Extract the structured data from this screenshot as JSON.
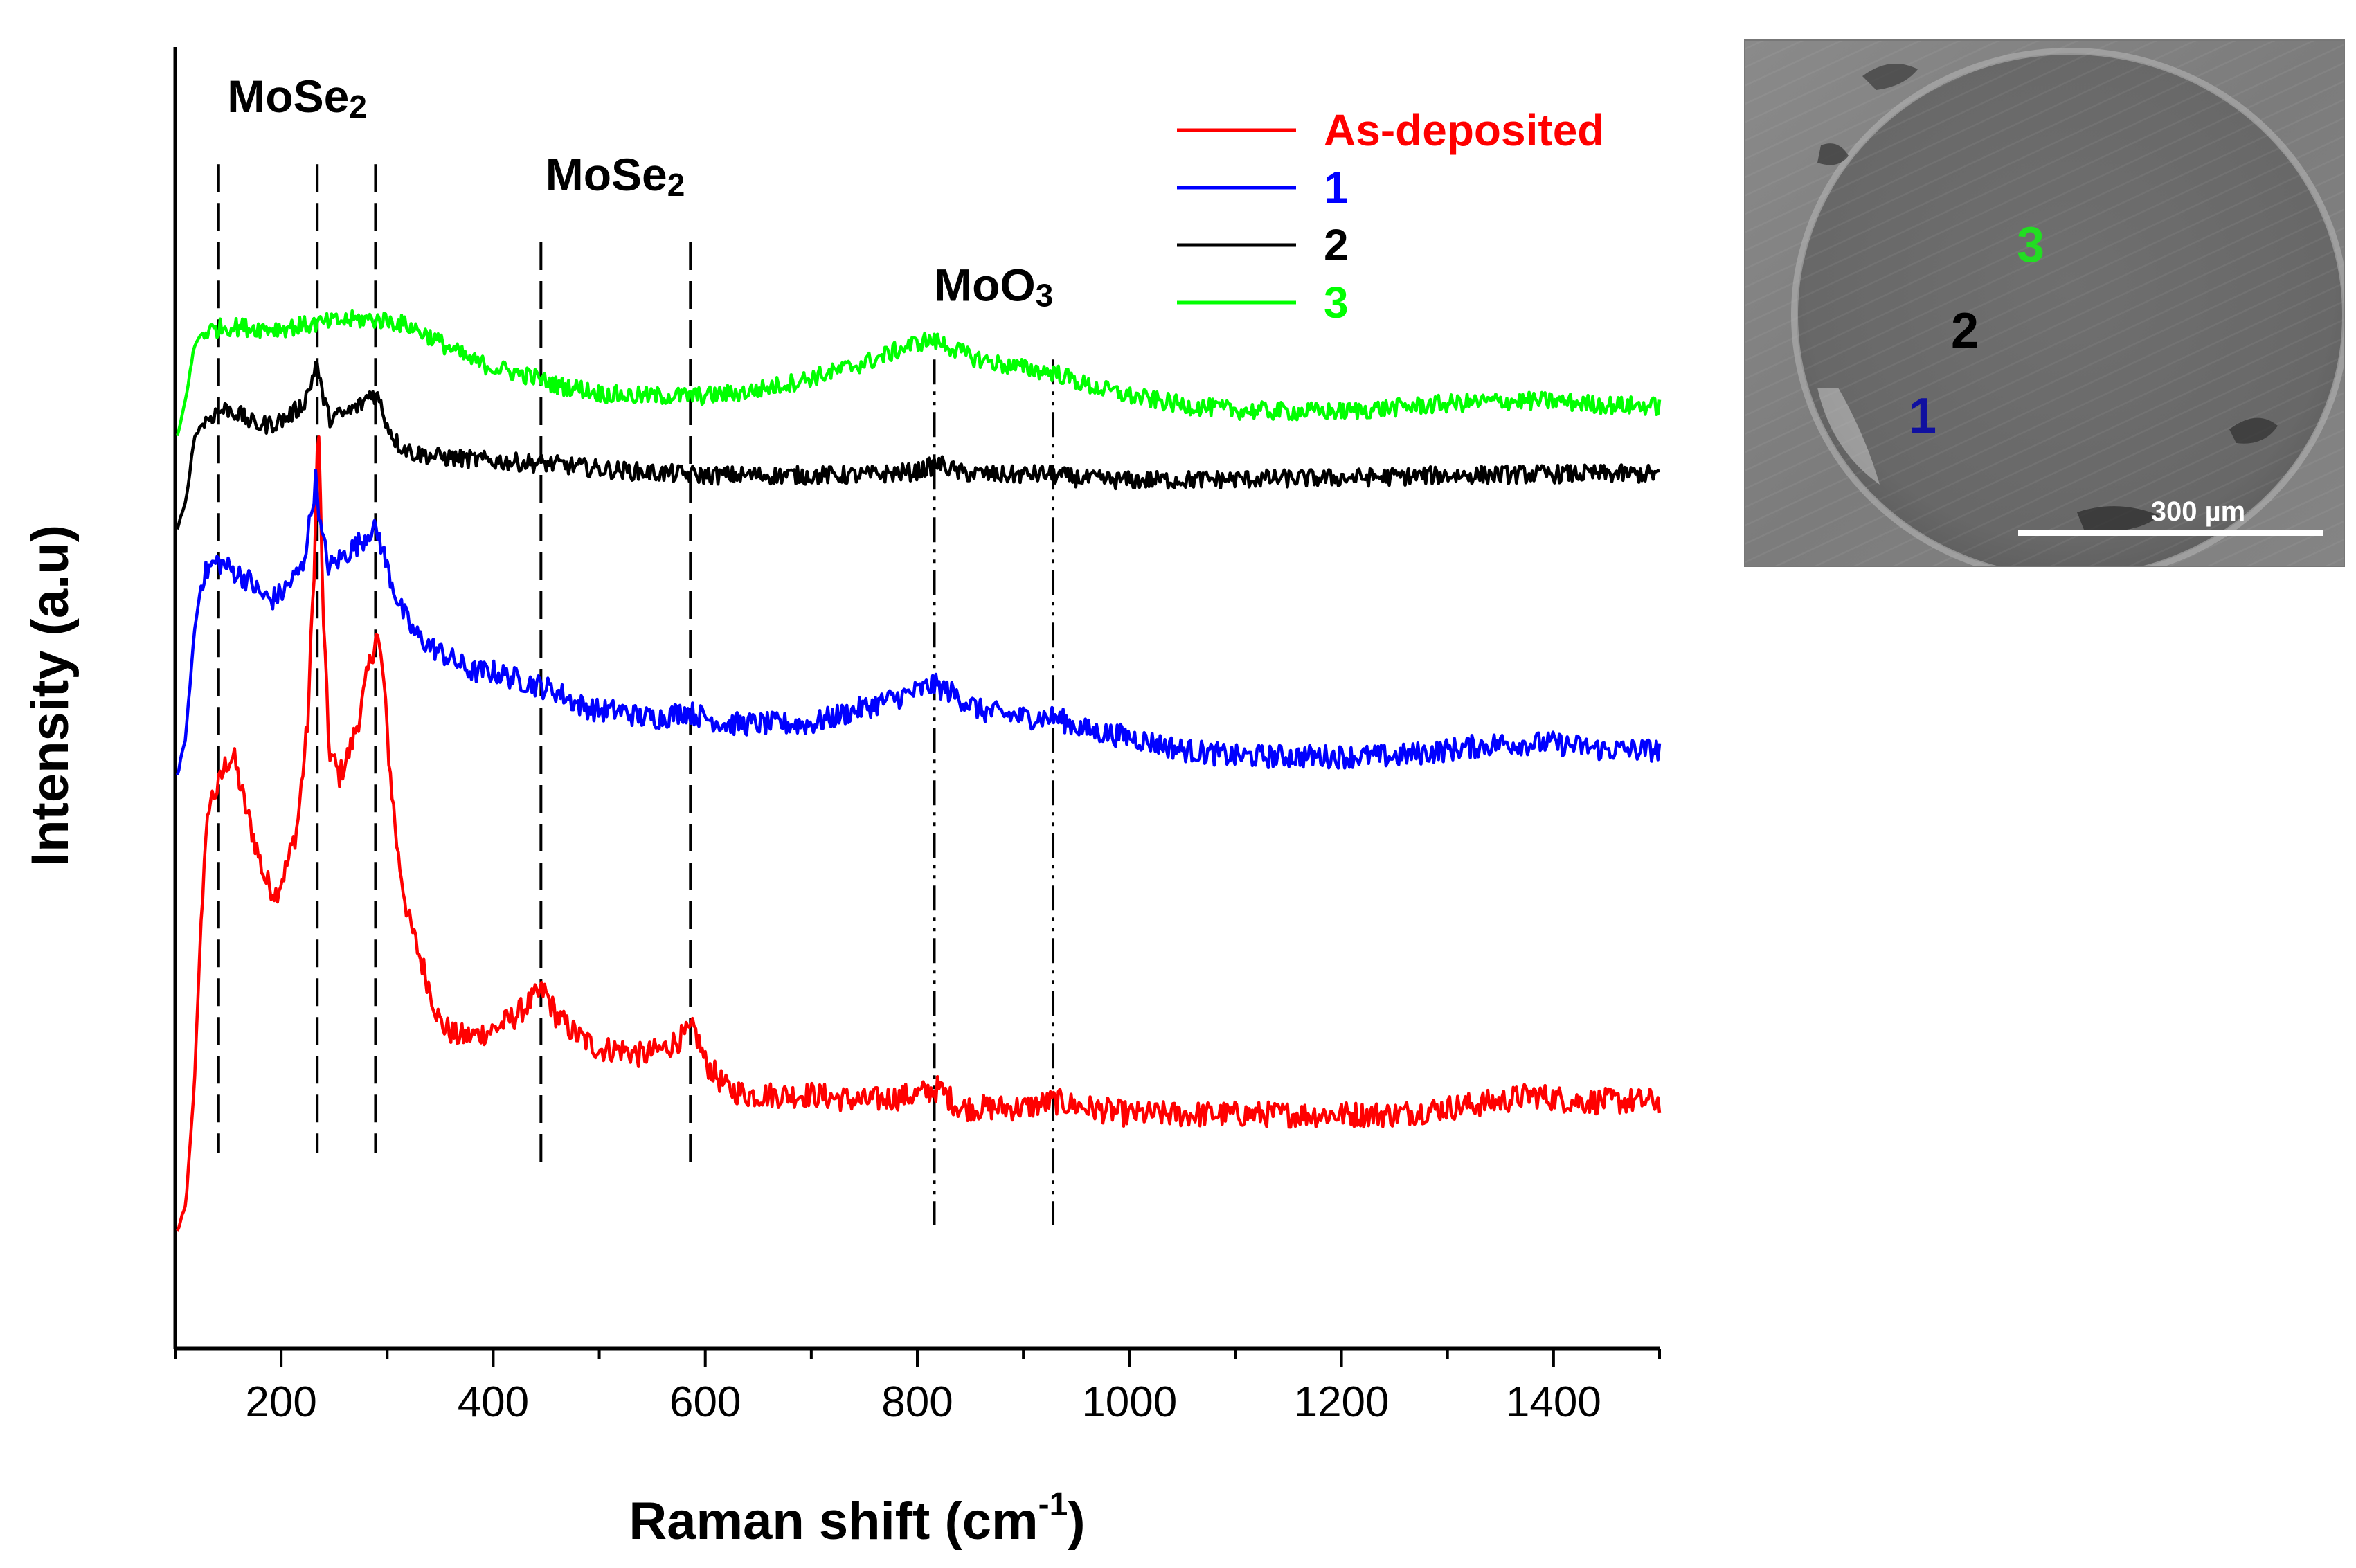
{
  "chart_data": {
    "type": "line",
    "title": "",
    "xlabel_main": "Raman shift (cm",
    "xlabel_sup": "-1",
    "xlabel_close": ")",
    "ylabel": "Intensity (a.u)",
    "xlim": [
      100,
      1500
    ],
    "xticks": [
      200,
      400,
      600,
      800,
      1000,
      1200,
      1400
    ],
    "xtick_labels": [
      "200",
      "400",
      "600",
      "800",
      "1000",
      "1200",
      "1400"
    ],
    "ylim": [
      0,
      100
    ],
    "grid": false,
    "legend_position": "top-right",
    "series": [
      {
        "name": "As-deposited",
        "color": "#ff0000",
        "noise": 1.0,
        "points": [
          [
            102,
            9
          ],
          [
            110,
            11
          ],
          [
            118,
            20
          ],
          [
            125,
            34
          ],
          [
            132,
            42
          ],
          [
            140,
            43
          ],
          [
            148,
            45
          ],
          [
            155,
            45.5
          ],
          [
            165,
            42
          ],
          [
            175,
            39
          ],
          [
            185,
            36
          ],
          [
            195,
            35
          ],
          [
            205,
            37
          ],
          [
            215,
            40
          ],
          [
            225,
            48
          ],
          [
            232,
            62
          ],
          [
            235,
            72
          ],
          [
            239,
            58
          ],
          [
            245,
            46
          ],
          [
            255,
            44
          ],
          [
            265,
            46
          ],
          [
            275,
            49
          ],
          [
            282,
            52
          ],
          [
            290,
            55
          ],
          [
            296,
            52
          ],
          [
            302,
            45
          ],
          [
            310,
            38
          ],
          [
            320,
            33
          ],
          [
            335,
            29
          ],
          [
            350,
            25
          ],
          [
            365,
            24
          ],
          [
            380,
            24
          ],
          [
            400,
            24.5
          ],
          [
            420,
            25.5
          ],
          [
            440,
            27
          ],
          [
            448,
            27.5
          ],
          [
            460,
            25.5
          ],
          [
            480,
            24
          ],
          [
            500,
            23
          ],
          [
            520,
            23
          ],
          [
            540,
            22.5
          ],
          [
            560,
            23
          ],
          [
            580,
            24
          ],
          [
            590,
            24.5
          ],
          [
            600,
            22
          ],
          [
            620,
            20
          ],
          [
            640,
            19.5
          ],
          [
            660,
            19.5
          ],
          [
            700,
            19.5
          ],
          [
            750,
            19
          ],
          [
            800,
            19.5
          ],
          [
            820,
            20
          ],
          [
            840,
            18.5
          ],
          [
            870,
            18.5
          ],
          [
            900,
            18.5
          ],
          [
            930,
            19
          ],
          [
            960,
            18.5
          ],
          [
            1000,
            18
          ],
          [
            1050,
            18
          ],
          [
            1100,
            18
          ],
          [
            1150,
            18
          ],
          [
            1200,
            18
          ],
          [
            1250,
            18
          ],
          [
            1300,
            18.5
          ],
          [
            1350,
            19
          ],
          [
            1380,
            19.5
          ],
          [
            1420,
            19
          ],
          [
            1460,
            19
          ],
          [
            1500,
            19
          ]
        ]
      },
      {
        "name": "1",
        "color": "#0000ff",
        "noise": 0.9,
        "points": [
          [
            102,
            44
          ],
          [
            110,
            47
          ],
          [
            118,
            55
          ],
          [
            125,
            59
          ],
          [
            132,
            60
          ],
          [
            140,
            60.5
          ],
          [
            150,
            60
          ],
          [
            160,
            59.5
          ],
          [
            170,
            59
          ],
          [
            180,
            58
          ],
          [
            190,
            57.5
          ],
          [
            200,
            58
          ],
          [
            210,
            59
          ],
          [
            220,
            60
          ],
          [
            228,
            64
          ],
          [
            233,
            67
          ],
          [
            237,
            63
          ],
          [
            245,
            60
          ],
          [
            260,
            61
          ],
          [
            275,
            62
          ],
          [
            285,
            63
          ],
          [
            292,
            62.5
          ],
          [
            300,
            60
          ],
          [
            312,
            57
          ],
          [
            325,
            55
          ],
          [
            340,
            54
          ],
          [
            360,
            53
          ],
          [
            380,
            52
          ],
          [
            400,
            52
          ],
          [
            420,
            51.5
          ],
          [
            440,
            51
          ],
          [
            460,
            50.5
          ],
          [
            480,
            49.5
          ],
          [
            500,
            49
          ],
          [
            520,
            49
          ],
          [
            540,
            48.5
          ],
          [
            560,
            48.5
          ],
          [
            580,
            49
          ],
          [
            600,
            48.5
          ],
          [
            620,
            48
          ],
          [
            650,
            48
          ],
          [
            680,
            48
          ],
          [
            700,
            48
          ],
          [
            720,
            48.5
          ],
          [
            740,
            49
          ],
          [
            760,
            49.5
          ],
          [
            780,
            50
          ],
          [
            800,
            50.5
          ],
          [
            815,
            51
          ],
          [
            830,
            50.5
          ],
          [
            860,
            49
          ],
          [
            900,
            48.5
          ],
          [
            930,
            48.5
          ],
          [
            960,
            47.5
          ],
          [
            1000,
            47
          ],
          [
            1050,
            46
          ],
          [
            1100,
            45.5
          ],
          [
            1150,
            45.5
          ],
          [
            1200,
            45.5
          ],
          [
            1250,
            45.5
          ],
          [
            1300,
            46
          ],
          [
            1350,
            46.5
          ],
          [
            1400,
            46.5
          ],
          [
            1450,
            46
          ],
          [
            1500,
            46
          ]
        ]
      },
      {
        "name": "2",
        "color": "#000000",
        "noise": 0.7,
        "points": [
          [
            102,
            63
          ],
          [
            110,
            65
          ],
          [
            118,
            70
          ],
          [
            125,
            71
          ],
          [
            132,
            71.5
          ],
          [
            140,
            72
          ],
          [
            150,
            72.2
          ],
          [
            160,
            71.8
          ],
          [
            175,
            71
          ],
          [
            190,
            71
          ],
          [
            205,
            71.5
          ],
          [
            220,
            72.5
          ],
          [
            228,
            74
          ],
          [
            233,
            76
          ],
          [
            237,
            74
          ],
          [
            245,
            71.5
          ],
          [
            260,
            71.8
          ],
          [
            275,
            72.5
          ],
          [
            285,
            73.5
          ],
          [
            292,
            73
          ],
          [
            300,
            71
          ],
          [
            310,
            69.5
          ],
          [
            325,
            68.8
          ],
          [
            350,
            68.5
          ],
          [
            400,
            68.2
          ],
          [
            450,
            68
          ],
          [
            500,
            67.6
          ],
          [
            550,
            67.3
          ],
          [
            600,
            67.1
          ],
          [
            650,
            67.1
          ],
          [
            700,
            67.1
          ],
          [
            750,
            67.1
          ],
          [
            800,
            67.4
          ],
          [
            820,
            68
          ],
          [
            840,
            67.3
          ],
          [
            880,
            67.1
          ],
          [
            920,
            67.2
          ],
          [
            960,
            66.8
          ],
          [
            1000,
            66.7
          ],
          [
            1100,
            66.8
          ],
          [
            1200,
            66.9
          ],
          [
            1300,
            67.1
          ],
          [
            1400,
            67.2
          ],
          [
            1500,
            67.2
          ]
        ]
      },
      {
        "name": "3",
        "color": "#00ff00",
        "noise": 0.7,
        "points": [
          [
            102,
            70
          ],
          [
            110,
            73
          ],
          [
            118,
            77
          ],
          [
            125,
            78
          ],
          [
            132,
            78.2
          ],
          [
            145,
            78.5
          ],
          [
            160,
            78.5
          ],
          [
            180,
            78.4
          ],
          [
            200,
            78.4
          ],
          [
            220,
            78.6
          ],
          [
            240,
            78.8
          ],
          [
            260,
            79
          ],
          [
            280,
            79.1
          ],
          [
            300,
            79
          ],
          [
            320,
            78.6
          ],
          [
            340,
            77.8
          ],
          [
            360,
            76.8
          ],
          [
            380,
            75.9
          ],
          [
            400,
            75.4
          ],
          [
            420,
            75
          ],
          [
            440,
            74.6
          ],
          [
            460,
            74
          ],
          [
            480,
            73.8
          ],
          [
            500,
            73.4
          ],
          [
            530,
            73.2
          ],
          [
            560,
            73.2
          ],
          [
            600,
            73.2
          ],
          [
            640,
            73.5
          ],
          [
            680,
            74.2
          ],
          [
            720,
            75
          ],
          [
            760,
            76
          ],
          [
            790,
            77
          ],
          [
            810,
            77.5
          ],
          [
            825,
            77.2
          ],
          [
            850,
            76.2
          ],
          [
            880,
            75.6
          ],
          [
            910,
            75.2
          ],
          [
            930,
            75
          ],
          [
            960,
            74
          ],
          [
            1000,
            73.2
          ],
          [
            1050,
            72.5
          ],
          [
            1100,
            72.1
          ],
          [
            1150,
            72
          ],
          [
            1200,
            72
          ],
          [
            1250,
            72.3
          ],
          [
            1300,
            72.6
          ],
          [
            1350,
            72.8
          ],
          [
            1400,
            72.8
          ],
          [
            1450,
            72.5
          ],
          [
            1500,
            72.4
          ]
        ]
      }
    ],
    "reference_lines": [
      {
        "x": 141,
        "style": "dashed",
        "y_from": 15,
        "y_to": 91
      },
      {
        "x": 234,
        "style": "dashed",
        "y_from": 15,
        "y_to": 91
      },
      {
        "x": 289,
        "style": "dashed",
        "y_from": 15,
        "y_to": 91
      },
      {
        "x": 445,
        "style": "dashed",
        "y_from": 13.5,
        "y_to": 85
      },
      {
        "x": 586,
        "style": "dashed",
        "y_from": 13.5,
        "y_to": 85
      },
      {
        "x": 816,
        "style": "dash-dot",
        "y_from": 9.5,
        "y_to": 76
      },
      {
        "x": 928,
        "style": "dash-dot",
        "y_from": 9.5,
        "y_to": 76
      }
    ],
    "annotations": [
      {
        "base": "MoSe",
        "sub": "2",
        "x": 215,
        "y": 95
      },
      {
        "base": "MoSe",
        "sub": "2",
        "x": 515,
        "y": 89
      },
      {
        "base": "MoO",
        "sub": "3",
        "x": 872,
        "y": 80.5
      }
    ]
  },
  "inset": {
    "markers": [
      {
        "label": "1",
        "color": "#1010a0"
      },
      {
        "label": "2",
        "color": "#000000"
      },
      {
        "label": "3",
        "color": "#22dd22"
      }
    ],
    "scale_bar_label": "300 µm"
  }
}
